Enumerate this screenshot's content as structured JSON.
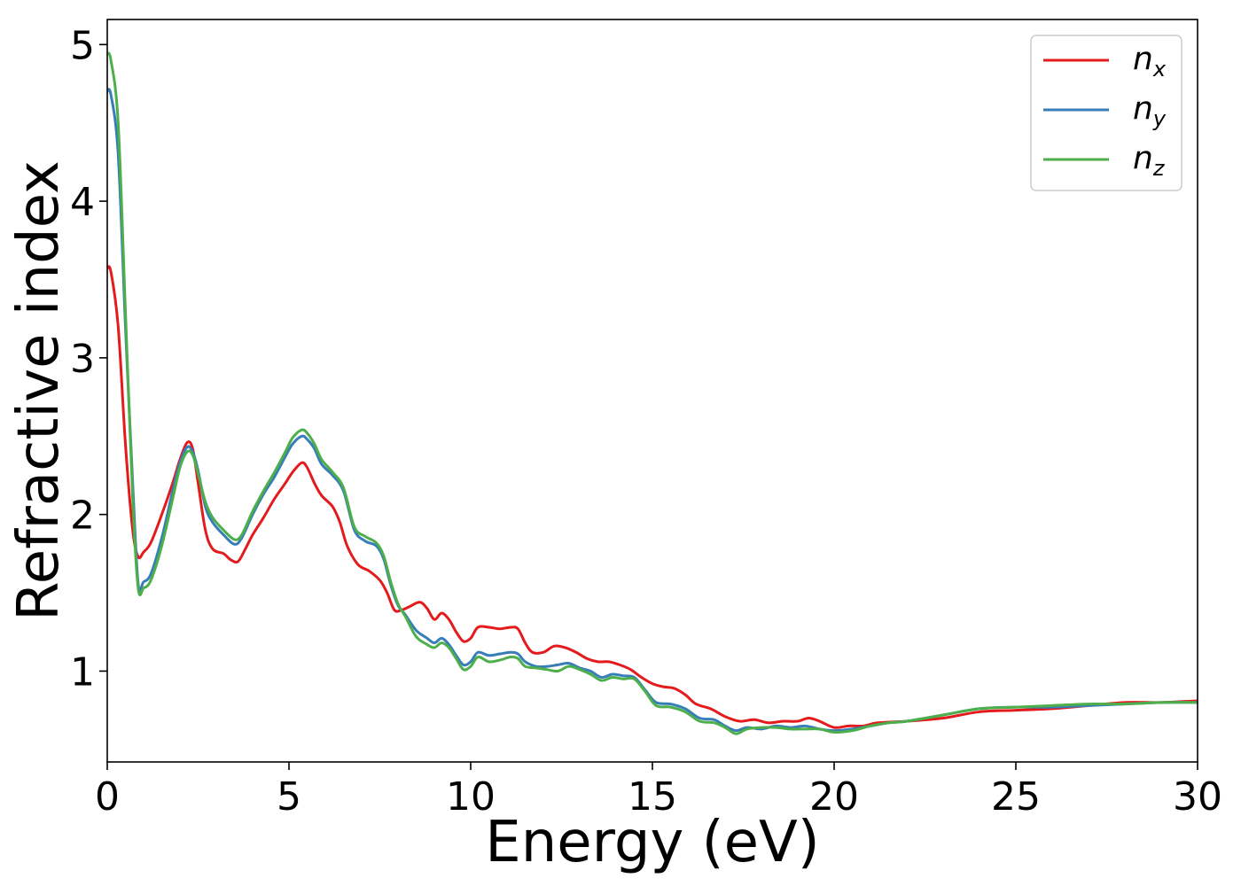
{
  "chart_data": {
    "type": "line",
    "title": "",
    "xlabel": "Energy (eV)",
    "ylabel": "Refractive index",
    "xlim": [
      0,
      30
    ],
    "ylim": [
      0.42,
      5.16
    ],
    "xticks": [
      0,
      5,
      10,
      15,
      20,
      25,
      30
    ],
    "yticks": [
      1,
      2,
      3,
      4,
      5
    ],
    "grid": false,
    "legend_position": "top-right",
    "series": [
      {
        "name": "n_x",
        "label_base": "n",
        "label_sub": "x",
        "color": "#e41a1c",
        "points": [
          [
            0,
            3.57
          ],
          [
            0.1,
            3.55
          ],
          [
            0.3,
            3.2
          ],
          [
            0.5,
            2.45
          ],
          [
            0.7,
            1.9
          ],
          [
            0.85,
            1.73
          ],
          [
            1.0,
            1.76
          ],
          [
            1.2,
            1.82
          ],
          [
            1.5,
            2.0
          ],
          [
            1.8,
            2.2
          ],
          [
            2.0,
            2.35
          ],
          [
            2.2,
            2.46
          ],
          [
            2.35,
            2.42
          ],
          [
            2.5,
            2.2
          ],
          [
            2.7,
            1.9
          ],
          [
            2.9,
            1.78
          ],
          [
            3.2,
            1.75
          ],
          [
            3.4,
            1.71
          ],
          [
            3.6,
            1.7
          ],
          [
            3.8,
            1.78
          ],
          [
            4.0,
            1.87
          ],
          [
            4.3,
            1.98
          ],
          [
            4.6,
            2.1
          ],
          [
            4.9,
            2.2
          ],
          [
            5.1,
            2.27
          ],
          [
            5.35,
            2.33
          ],
          [
            5.5,
            2.3
          ],
          [
            5.7,
            2.2
          ],
          [
            5.9,
            2.12
          ],
          [
            6.2,
            2.05
          ],
          [
            6.4,
            1.95
          ],
          [
            6.6,
            1.8
          ],
          [
            6.9,
            1.68
          ],
          [
            7.2,
            1.64
          ],
          [
            7.5,
            1.58
          ],
          [
            7.7,
            1.5
          ],
          [
            7.9,
            1.39
          ],
          [
            8.1,
            1.39
          ],
          [
            8.3,
            1.41
          ],
          [
            8.6,
            1.44
          ],
          [
            8.8,
            1.4
          ],
          [
            9.0,
            1.33
          ],
          [
            9.2,
            1.37
          ],
          [
            9.4,
            1.33
          ],
          [
            9.6,
            1.25
          ],
          [
            9.8,
            1.19
          ],
          [
            10.0,
            1.21
          ],
          [
            10.2,
            1.28
          ],
          [
            10.5,
            1.28
          ],
          [
            10.8,
            1.27
          ],
          [
            11.1,
            1.28
          ],
          [
            11.3,
            1.27
          ],
          [
            11.5,
            1.18
          ],
          [
            11.7,
            1.12
          ],
          [
            12.0,
            1.12
          ],
          [
            12.3,
            1.16
          ],
          [
            12.6,
            1.15
          ],
          [
            12.9,
            1.12
          ],
          [
            13.2,
            1.08
          ],
          [
            13.5,
            1.06
          ],
          [
            13.8,
            1.06
          ],
          [
            14.1,
            1.04
          ],
          [
            14.4,
            1.01
          ],
          [
            14.7,
            0.96
          ],
          [
            15.0,
            0.92
          ],
          [
            15.3,
            0.9
          ],
          [
            15.6,
            0.89
          ],
          [
            15.9,
            0.85
          ],
          [
            16.2,
            0.79
          ],
          [
            16.6,
            0.76
          ],
          [
            17.0,
            0.71
          ],
          [
            17.4,
            0.68
          ],
          [
            17.8,
            0.69
          ],
          [
            18.2,
            0.67
          ],
          [
            18.6,
            0.68
          ],
          [
            19.0,
            0.68
          ],
          [
            19.3,
            0.7
          ],
          [
            19.6,
            0.68
          ],
          [
            20.0,
            0.64
          ],
          [
            20.4,
            0.65
          ],
          [
            20.8,
            0.65
          ],
          [
            21.2,
            0.67
          ],
          [
            22.0,
            0.68
          ],
          [
            23.0,
            0.7
          ],
          [
            24.0,
            0.74
          ],
          [
            25.0,
            0.75
          ],
          [
            26.0,
            0.76
          ],
          [
            27.0,
            0.78
          ],
          [
            28.0,
            0.8
          ],
          [
            29.0,
            0.8
          ],
          [
            30.0,
            0.81
          ]
        ]
      },
      {
        "name": "n_y",
        "label_base": "n",
        "label_sub": "y",
        "color": "#377eb8",
        "points": [
          [
            0,
            4.7
          ],
          [
            0.1,
            4.68
          ],
          [
            0.3,
            4.3
          ],
          [
            0.5,
            3.2
          ],
          [
            0.7,
            2.2
          ],
          [
            0.85,
            1.56
          ],
          [
            1.0,
            1.57
          ],
          [
            1.2,
            1.62
          ],
          [
            1.5,
            1.85
          ],
          [
            1.8,
            2.15
          ],
          [
            2.0,
            2.33
          ],
          [
            2.2,
            2.43
          ],
          [
            2.35,
            2.4
          ],
          [
            2.5,
            2.28
          ],
          [
            2.7,
            2.05
          ],
          [
            2.9,
            1.95
          ],
          [
            3.2,
            1.87
          ],
          [
            3.5,
            1.81
          ],
          [
            3.7,
            1.85
          ],
          [
            4.0,
            2.0
          ],
          [
            4.3,
            2.13
          ],
          [
            4.6,
            2.24
          ],
          [
            4.9,
            2.37
          ],
          [
            5.1,
            2.45
          ],
          [
            5.35,
            2.5
          ],
          [
            5.5,
            2.48
          ],
          [
            5.7,
            2.42
          ],
          [
            5.9,
            2.32
          ],
          [
            6.2,
            2.25
          ],
          [
            6.5,
            2.15
          ],
          [
            6.8,
            1.9
          ],
          [
            7.1,
            1.83
          ],
          [
            7.4,
            1.8
          ],
          [
            7.6,
            1.72
          ],
          [
            7.8,
            1.55
          ],
          [
            8.0,
            1.42
          ],
          [
            8.2,
            1.36
          ],
          [
            8.5,
            1.26
          ],
          [
            8.8,
            1.21
          ],
          [
            9.0,
            1.18
          ],
          [
            9.2,
            1.21
          ],
          [
            9.4,
            1.17
          ],
          [
            9.6,
            1.1
          ],
          [
            9.8,
            1.04
          ],
          [
            10.0,
            1.06
          ],
          [
            10.2,
            1.12
          ],
          [
            10.5,
            1.1
          ],
          [
            10.8,
            1.11
          ],
          [
            11.1,
            1.12
          ],
          [
            11.3,
            1.11
          ],
          [
            11.5,
            1.06
          ],
          [
            11.8,
            1.03
          ],
          [
            12.1,
            1.03
          ],
          [
            12.4,
            1.04
          ],
          [
            12.7,
            1.05
          ],
          [
            13.0,
            1.02
          ],
          [
            13.3,
            1.0
          ],
          [
            13.6,
            0.96
          ],
          [
            13.9,
            0.98
          ],
          [
            14.2,
            0.97
          ],
          [
            14.5,
            0.96
          ],
          [
            14.8,
            0.88
          ],
          [
            15.1,
            0.8
          ],
          [
            15.5,
            0.79
          ],
          [
            15.9,
            0.76
          ],
          [
            16.3,
            0.7
          ],
          [
            16.7,
            0.69
          ],
          [
            17.0,
            0.65
          ],
          [
            17.3,
            0.62
          ],
          [
            17.6,
            0.64
          ],
          [
            18.0,
            0.63
          ],
          [
            18.4,
            0.65
          ],
          [
            18.8,
            0.64
          ],
          [
            19.2,
            0.65
          ],
          [
            19.6,
            0.63
          ],
          [
            20.0,
            0.62
          ],
          [
            20.5,
            0.63
          ],
          [
            21.0,
            0.65
          ],
          [
            21.5,
            0.67
          ],
          [
            22.0,
            0.68
          ],
          [
            23.0,
            0.72
          ],
          [
            24.0,
            0.76
          ],
          [
            25.0,
            0.77
          ],
          [
            26.0,
            0.77
          ],
          [
            27.0,
            0.78
          ],
          [
            28.0,
            0.79
          ],
          [
            29.0,
            0.8
          ],
          [
            30.0,
            0.8
          ]
        ]
      },
      {
        "name": "n_z",
        "label_base": "n",
        "label_sub": "z",
        "color": "#4daf4a",
        "points": [
          [
            0,
            4.94
          ],
          [
            0.1,
            4.9
          ],
          [
            0.3,
            4.5
          ],
          [
            0.5,
            3.3
          ],
          [
            0.7,
            2.1
          ],
          [
            0.85,
            1.53
          ],
          [
            1.0,
            1.53
          ],
          [
            1.2,
            1.58
          ],
          [
            1.5,
            1.8
          ],
          [
            1.8,
            2.1
          ],
          [
            2.0,
            2.3
          ],
          [
            2.2,
            2.4
          ],
          [
            2.35,
            2.38
          ],
          [
            2.5,
            2.26
          ],
          [
            2.7,
            2.08
          ],
          [
            2.9,
            1.98
          ],
          [
            3.2,
            1.9
          ],
          [
            3.5,
            1.84
          ],
          [
            3.7,
            1.87
          ],
          [
            4.0,
            2.02
          ],
          [
            4.3,
            2.15
          ],
          [
            4.6,
            2.27
          ],
          [
            4.9,
            2.4
          ],
          [
            5.1,
            2.49
          ],
          [
            5.35,
            2.54
          ],
          [
            5.5,
            2.52
          ],
          [
            5.7,
            2.45
          ],
          [
            5.9,
            2.35
          ],
          [
            6.2,
            2.27
          ],
          [
            6.5,
            2.17
          ],
          [
            6.8,
            1.92
          ],
          [
            7.1,
            1.86
          ],
          [
            7.4,
            1.82
          ],
          [
            7.6,
            1.74
          ],
          [
            7.8,
            1.57
          ],
          [
            8.0,
            1.43
          ],
          [
            8.2,
            1.35
          ],
          [
            8.5,
            1.22
          ],
          [
            8.8,
            1.17
          ],
          [
            9.0,
            1.15
          ],
          [
            9.2,
            1.18
          ],
          [
            9.4,
            1.15
          ],
          [
            9.6,
            1.08
          ],
          [
            9.8,
            1.01
          ],
          [
            10.0,
            1.03
          ],
          [
            10.2,
            1.09
          ],
          [
            10.5,
            1.06
          ],
          [
            10.8,
            1.07
          ],
          [
            11.1,
            1.09
          ],
          [
            11.3,
            1.08
          ],
          [
            11.5,
            1.03
          ],
          [
            11.8,
            1.02
          ],
          [
            12.1,
            1.01
          ],
          [
            12.4,
            1.0
          ],
          [
            12.7,
            1.03
          ],
          [
            13.0,
            1.01
          ],
          [
            13.3,
            0.98
          ],
          [
            13.6,
            0.94
          ],
          [
            13.9,
            0.96
          ],
          [
            14.2,
            0.95
          ],
          [
            14.5,
            0.95
          ],
          [
            14.8,
            0.87
          ],
          [
            15.1,
            0.78
          ],
          [
            15.5,
            0.77
          ],
          [
            15.9,
            0.74
          ],
          [
            16.3,
            0.68
          ],
          [
            16.7,
            0.67
          ],
          [
            17.0,
            0.64
          ],
          [
            17.3,
            0.6
          ],
          [
            17.6,
            0.63
          ],
          [
            18.0,
            0.64
          ],
          [
            18.4,
            0.64
          ],
          [
            18.8,
            0.63
          ],
          [
            19.2,
            0.63
          ],
          [
            19.6,
            0.63
          ],
          [
            20.0,
            0.61
          ],
          [
            20.5,
            0.62
          ],
          [
            21.0,
            0.65
          ],
          [
            21.5,
            0.67
          ],
          [
            22.0,
            0.68
          ],
          [
            23.0,
            0.72
          ],
          [
            24.0,
            0.76
          ],
          [
            25.0,
            0.77
          ],
          [
            26.0,
            0.78
          ],
          [
            27.0,
            0.79
          ],
          [
            28.0,
            0.79
          ],
          [
            29.0,
            0.8
          ],
          [
            30.0,
            0.8
          ]
        ]
      }
    ]
  }
}
